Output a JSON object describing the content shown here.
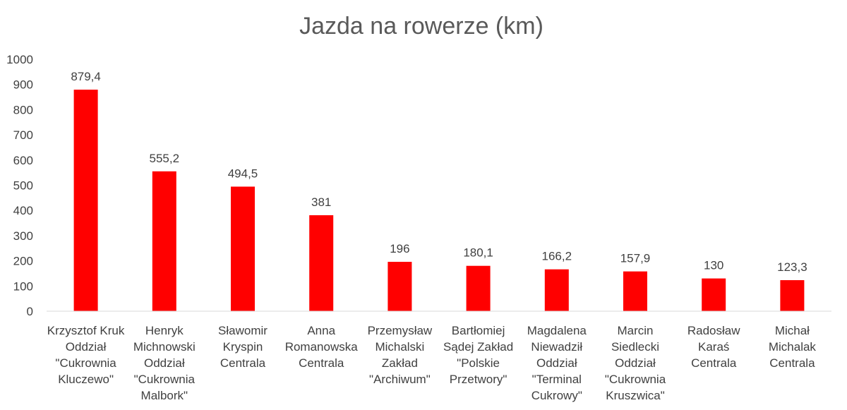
{
  "chart_data": {
    "type": "bar",
    "title": "Jazda na rowerze (km)",
    "xlabel": "",
    "ylabel": "",
    "ylim": [
      0,
      1000
    ],
    "yticks": [
      "0",
      "100",
      "200",
      "300",
      "400",
      "500",
      "600",
      "700",
      "800",
      "900",
      "1000"
    ],
    "grid": false,
    "bar_color": "#ff0000",
    "categories": [
      [
        "Krzysztof Kruk",
        "Oddział",
        "\"Cukrownia",
        "Kluczewo\""
      ],
      [
        "Henryk",
        "Michnowski",
        "Oddział",
        "\"Cukrownia",
        "Malbork\""
      ],
      [
        "Sławomir",
        "Kryspin",
        "Centrala"
      ],
      [
        "Anna",
        "Romanowska",
        "Centrala"
      ],
      [
        "Przemysław",
        "Michalski",
        "Zakład",
        "\"Archiwum\""
      ],
      [
        "Bartłomiej",
        "Sądej Zakład",
        "\"Polskie",
        "Przetwory\""
      ],
      [
        "Magdalena",
        "Niewadził",
        "Oddział",
        "\"Terminal",
        "Cukrowy\""
      ],
      [
        "Marcin",
        "Siedlecki",
        "Oddział",
        "\"Cukrownia",
        "Kruszwica\""
      ],
      [
        "Radosław",
        "Karaś",
        "Centrala"
      ],
      [
        "Michał",
        "Michalak",
        "Centrala"
      ]
    ],
    "values": [
      879.4,
      555.2,
      494.5,
      381,
      196,
      180.1,
      166.2,
      157.9,
      130,
      123.3
    ],
    "data_labels": [
      "879,4",
      "555,2",
      "494,5",
      "381",
      "196",
      "180,1",
      "166,2",
      "157,9",
      "130",
      "123,3"
    ]
  }
}
